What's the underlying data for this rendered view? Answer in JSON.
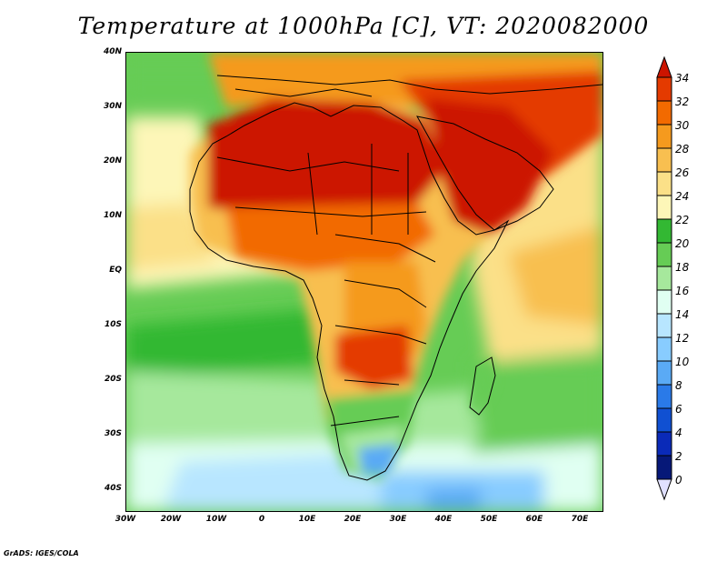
{
  "title": "Temperature at 1000hPa [C], VT: 2020082000",
  "credit": "GrADS: IGES/COLA",
  "axes": {
    "y_ticks": [
      "40N",
      "30N",
      "20N",
      "10N",
      "EQ",
      "10S",
      "20S",
      "30S",
      "40S"
    ],
    "x_ticks": [
      "30W",
      "20W",
      "10W",
      "0",
      "10E",
      "20E",
      "30E",
      "40E",
      "50E",
      "60E",
      "70E"
    ]
  },
  "colorbar": {
    "labels": [
      "34",
      "32",
      "30",
      "28",
      "26",
      "24",
      "22",
      "20",
      "18",
      "16",
      "14",
      "12",
      "10",
      "8",
      "6",
      "4",
      "2",
      "0"
    ],
    "colors": [
      "#cc1400",
      "#e43a00",
      "#f26a00",
      "#f59a1e",
      "#f8bf50",
      "#fbe088",
      "#fdf6b8",
      "#33b833",
      "#66cc55",
      "#a6e89c",
      "#e0fff2",
      "#b8e6ff",
      "#88ccff",
      "#5aaaf5",
      "#2a7ae8",
      "#1050d2",
      "#0a2ab8",
      "#061878",
      "#e0e0ff"
    ]
  }
}
